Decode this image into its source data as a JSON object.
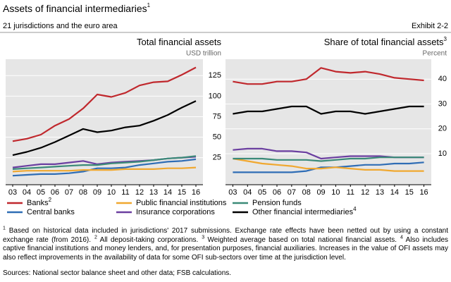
{
  "header": {
    "title": "Assets of financial intermediaries",
    "title_note": "1",
    "subtitle": "21 jurisdictions and the euro area",
    "exhibit": "Exhibit 2-2"
  },
  "chart_data": [
    {
      "type": "line",
      "title": "Total financial assets",
      "unit": "USD trillion",
      "categories": [
        "03",
        "04",
        "05",
        "06",
        "07",
        "08",
        "09",
        "10",
        "11",
        "12",
        "13",
        "14",
        "15",
        "16"
      ],
      "ylim": [
        -8,
        145
      ],
      "yticks": [
        25,
        50,
        75,
        100,
        125
      ],
      "grid": true,
      "series": [
        {
          "name": "Banks",
          "name_note": "2",
          "color": "#c0282d",
          "values": [
            45,
            48,
            53,
            64,
            72,
            85,
            102,
            99,
            104,
            113,
            117,
            118,
            126,
            135
          ]
        },
        {
          "name": "Central banks",
          "color": "#2f6db5",
          "values": [
            3,
            4,
            5,
            5,
            6,
            8,
            12,
            12,
            13,
            16,
            18,
            20,
            21,
            23
          ]
        },
        {
          "name": "Public financial institutions",
          "color": "#f0a830",
          "values": [
            8,
            9,
            9,
            9,
            9,
            10,
            10,
            10,
            11,
            11,
            11,
            12,
            12,
            13
          ]
        },
        {
          "name": "Insurance corporations",
          "color": "#6b3fa0",
          "values": [
            13,
            15,
            17,
            17,
            19,
            21,
            17,
            19,
            20,
            21,
            22,
            24,
            25,
            26
          ]
        },
        {
          "name": "Pension funds",
          "color": "#3b8a78",
          "values": [
            11,
            12,
            13,
            14,
            15,
            16,
            16,
            18,
            19,
            20,
            22,
            24,
            25,
            27
          ]
        },
        {
          "name": "Other financial intermediaries",
          "name_note": "4",
          "color": "#000000",
          "values": [
            28,
            32,
            37,
            44,
            52,
            60,
            56,
            58,
            62,
            64,
            70,
            77,
            86,
            94
          ]
        }
      ]
    },
    {
      "type": "line",
      "title": "Share of total financial assets",
      "title_note": "3",
      "unit": "Percent",
      "categories": [
        "03",
        "04",
        "05",
        "06",
        "07",
        "08",
        "09",
        "10",
        "11",
        "12",
        "13",
        "14",
        "15",
        "16"
      ],
      "ylim": [
        -2.5,
        48
      ],
      "yticks": [
        10,
        20,
        30,
        40
      ],
      "grid": true,
      "series": [
        {
          "name": "Banks",
          "color": "#c0282d",
          "values": [
            39,
            38,
            38,
            39,
            39,
            40,
            44.5,
            43,
            42.5,
            43,
            42,
            40.5,
            40,
            39.5
          ]
        },
        {
          "name": "Central banks",
          "color": "#2f6db5",
          "values": [
            2.5,
            2.5,
            2.5,
            2.5,
            2.5,
            3,
            4.5,
            4.5,
            5,
            5.5,
            5.5,
            6,
            6,
            6.5
          ]
        },
        {
          "name": "Public financial institutions",
          "color": "#f0a830",
          "values": [
            8,
            7,
            6,
            5.5,
            5,
            4,
            4,
            4.5,
            4,
            3.5,
            3.5,
            3,
            3,
            3
          ]
        },
        {
          "name": "Insurance corporations",
          "color": "#6b3fa0",
          "values": [
            11.5,
            12,
            12,
            11,
            11,
            10.5,
            8,
            8.5,
            9,
            9,
            9,
            8.5,
            8.5,
            8.5
          ]
        },
        {
          "name": "Pension funds",
          "color": "#3b8a78",
          "values": [
            8,
            8,
            8,
            7.5,
            7.5,
            7.5,
            7,
            7.5,
            8,
            8,
            8.5,
            8.5,
            8.5,
            8.5
          ]
        },
        {
          "name": "Other financial intermediaries",
          "color": "#000000",
          "values": [
            26,
            27,
            27,
            28,
            29,
            29,
            26,
            27,
            27,
            26,
            27,
            28,
            29,
            29
          ]
        }
      ]
    }
  ],
  "footnotes": [
    {
      "mark": "1",
      "text": "Based on historical data included in jurisdictions' 2017 submissions. Exchange rate effects have been netted out by using a constant exchange rate (from 2016)."
    },
    {
      "mark": "2",
      "text": "All deposit-taking corporations."
    },
    {
      "mark": "3",
      "text": "Weighted average based on total national financial assets."
    },
    {
      "mark": "4",
      "text": "Also includes captive financial institutions and money lenders, and, for presentation purposes, financial auxiliaries. Increases in the value of OFI assets may also reflect improvements in the availability of data for some OFI sub-sectors over time at the jurisdiction level."
    }
  ],
  "sources": "Sources: National sector balance sheet and other data; FSB calculations."
}
